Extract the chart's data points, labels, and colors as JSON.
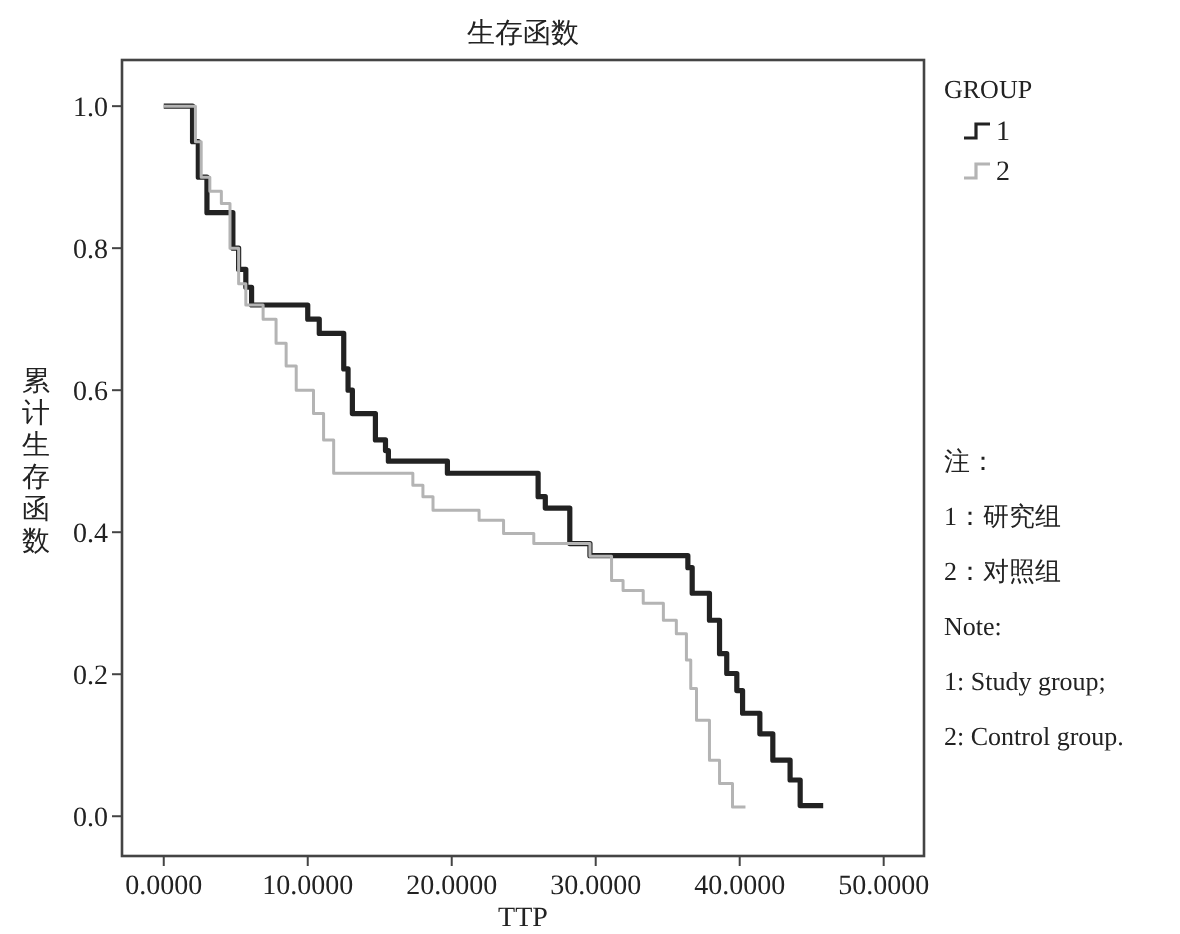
{
  "chart_data": {
    "type": "step",
    "title": "生存函数",
    "xlabel": "TTP",
    "ylabel": "累计生存函数",
    "legend_title": "GROUP",
    "xlim": [
      -2.9,
      52.8
    ],
    "ylim": [
      -0.056,
      1.065
    ],
    "xticks": [
      {
        "value": 0,
        "label": "0.0000"
      },
      {
        "value": 10,
        "label": "10.0000"
      },
      {
        "value": 20,
        "label": "20.0000"
      },
      {
        "value": 30,
        "label": "30.0000"
      },
      {
        "value": 40,
        "label": "40.0000"
      },
      {
        "value": 50,
        "label": "50.0000"
      }
    ],
    "yticks": [
      {
        "value": 0,
        "label": "0.0"
      },
      {
        "value": 0.2,
        "label": "0.2"
      },
      {
        "value": 0.4,
        "label": "0.4"
      },
      {
        "value": 0.6,
        "label": "0.6"
      },
      {
        "value": 0.8,
        "label": "0.8"
      },
      {
        "value": 1,
        "label": "1.0"
      }
    ],
    "grid": false,
    "legend": "right",
    "series": [
      {
        "name": "1",
        "color": "#222222",
        "x": [
          0,
          2.0,
          2.4,
          3.0,
          4.8,
          5.2,
          5.7,
          6.1,
          10.0,
          10.8,
          12.5,
          12.8,
          13.1,
          14.7,
          15.4,
          15.6,
          19.7,
          26.0,
          26.5,
          28.2,
          29.6,
          36.4,
          36.7,
          37.9,
          38.6,
          39.1,
          39.8,
          40.2,
          41.4,
          42.3,
          43.5,
          44.2,
          45.8
        ],
        "values": [
          1.0,
          0.95,
          0.9,
          0.85,
          0.8,
          0.77,
          0.745,
          0.72,
          0.7,
          0.68,
          0.63,
          0.6,
          0.567,
          0.53,
          0.515,
          0.5,
          0.483,
          0.45,
          0.434,
          0.384,
          0.367,
          0.35,
          0.314,
          0.276,
          0.229,
          0.201,
          0.177,
          0.145,
          0.116,
          0.079,
          0.051,
          0.015,
          0.015
        ]
      },
      {
        "name": "2",
        "color": "#b4b4b4",
        "x": [
          0,
          2.2,
          2.6,
          3.2,
          4.0,
          4.6,
          5.2,
          5.7,
          6.9,
          7.8,
          8.5,
          9.2,
          10.4,
          11.1,
          11.8,
          17.3,
          18.0,
          18.7,
          21.9,
          23.6,
          25.7,
          29.6,
          31.1,
          31.9,
          33.3,
          34.7,
          35.6,
          36.3,
          36.6,
          37.0,
          37.9,
          38.6,
          39.5,
          40.4
        ],
        "values": [
          1.0,
          0.95,
          0.9,
          0.88,
          0.863,
          0.8,
          0.75,
          0.72,
          0.7,
          0.666,
          0.634,
          0.6,
          0.567,
          0.53,
          0.483,
          0.466,
          0.45,
          0.431,
          0.417,
          0.398,
          0.384,
          0.366,
          0.332,
          0.318,
          0.3,
          0.276,
          0.257,
          0.22,
          0.18,
          0.135,
          0.079,
          0.046,
          0.013,
          0.013
        ]
      }
    ],
    "annotations": [
      "注：",
      "1：研究组",
      "2：对照组",
      "Note:",
      "1: Study group;",
      "2: Control group."
    ]
  }
}
